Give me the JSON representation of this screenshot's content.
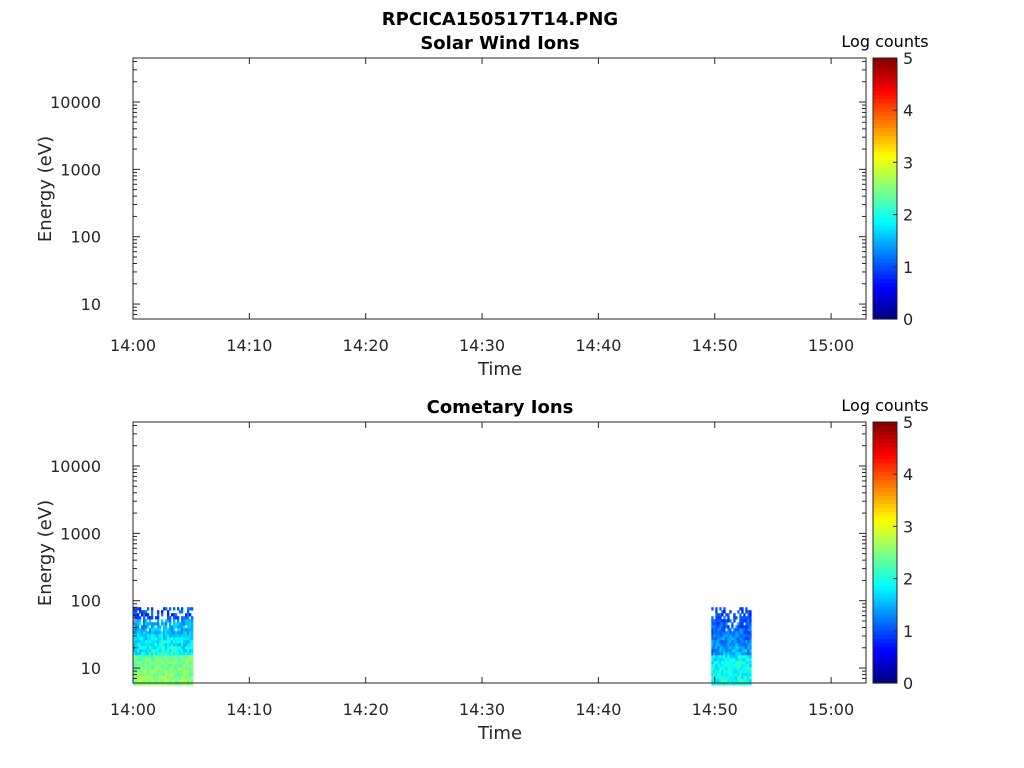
{
  "figure_title": "RPCICA150517T14.PNG",
  "chart_data": [
    {
      "type": "heatmap",
      "title": "Solar Wind Ions",
      "xlabel": "Time",
      "ylabel": "Energy (eV)",
      "x_ticks": [
        "14:00",
        "14:10",
        "14:20",
        "14:30",
        "14:40",
        "14:50",
        "15:00"
      ],
      "x_range_minutes": [
        0,
        63
      ],
      "y_scale": "log",
      "y_ticks": [
        "10",
        "100",
        "1000",
        "10000"
      ],
      "y_range": [
        6,
        45000
      ],
      "colorbar": {
        "label": "Log counts",
        "ticks": [
          "0",
          "1",
          "2",
          "3",
          "4",
          "5"
        ],
        "range": [
          0,
          5
        ],
        "colormap": "jet"
      },
      "blocks": []
    },
    {
      "type": "heatmap",
      "title": "Cometary Ions",
      "xlabel": "Time",
      "ylabel": "Energy (eV)",
      "x_ticks": [
        "14:00",
        "14:10",
        "14:20",
        "14:30",
        "14:40",
        "14:50",
        "15:00"
      ],
      "x_range_minutes": [
        0,
        63
      ],
      "y_scale": "log",
      "y_ticks": [
        "10",
        "100",
        "1000",
        "10000"
      ],
      "y_range": [
        6,
        45000
      ],
      "colorbar": {
        "label": "Log counts",
        "ticks": [
          "0",
          "1",
          "2",
          "3",
          "4",
          "5"
        ],
        "range": [
          0,
          5
        ],
        "colormap": "jet"
      },
      "blocks": [
        {
          "t_start": 0,
          "t_end": 5,
          "e_min": 6,
          "e_max": 80,
          "edge_level": 1.2,
          "center_level": 2.7,
          "low_energy_level": 2.6
        },
        {
          "t_start": 49.7,
          "t_end": 53,
          "e_min": 6,
          "e_max": 80,
          "edge_level": 0.9,
          "center_level": 2.0,
          "low_energy_level": 2.0
        }
      ]
    }
  ]
}
